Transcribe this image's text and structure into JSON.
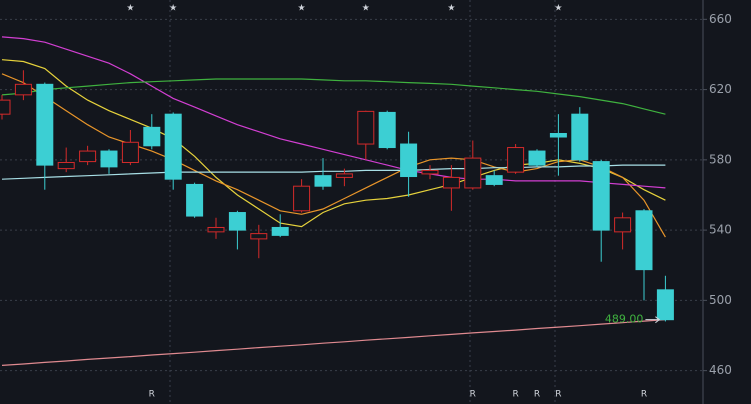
{
  "chart_data": {
    "type": "candlestick",
    "ylim": [
      441,
      671
    ],
    "yticks": [
      460,
      500,
      540,
      580,
      620,
      660
    ],
    "grid": true,
    "up_color": "#d42a2a",
    "down_color": "#3ccfd3",
    "categories": [
      null,
      null,
      null,
      null,
      null,
      null,
      null,
      null,
      null,
      null,
      null,
      null,
      null,
      null,
      null,
      null,
      null,
      null,
      null,
      null,
      null,
      null,
      null,
      null,
      null,
      null,
      null,
      null,
      null,
      null,
      null,
      null
    ],
    "candles": [
      {
        "open": 606,
        "high": 617,
        "low": 603,
        "close": 614
      },
      {
        "open": 617,
        "high": 631,
        "low": 614,
        "close": 623
      },
      {
        "open": 623,
        "high": 624,
        "low": 563,
        "close": 577
      },
      {
        "open": 575,
        "high": 587,
        "low": 573,
        "close": 578.5
      },
      {
        "open": 579,
        "high": 588,
        "low": 577,
        "close": 585
      },
      {
        "open": 585,
        "high": 586,
        "low": 572,
        "close": 576
      },
      {
        "open": 578.5,
        "high": 597,
        "low": 577,
        "close": 590
      },
      {
        "open": 598.5,
        "high": 606,
        "low": 586,
        "close": 588
      },
      {
        "open": 606,
        "high": 607,
        "low": 563,
        "close": 569
      },
      {
        "open": 566,
        "high": 567,
        "low": 547,
        "close": 548
      },
      {
        "open": 539,
        "high": 547,
        "low": 535,
        "close": 541.5
      },
      {
        "open": 550,
        "high": 551,
        "low": 529,
        "close": 540
      },
      {
        "open": 535,
        "high": 543,
        "low": 524,
        "close": 538
      },
      {
        "open": 541.5,
        "high": 549,
        "low": 536,
        "close": 537
      },
      {
        "open": 551,
        "high": 569,
        "low": 550,
        "close": 565
      },
      {
        "open": 571,
        "high": 581,
        "low": 563,
        "close": 565
      },
      {
        "open": 570,
        "high": 575,
        "low": 565,
        "close": 572
      },
      {
        "open": 589,
        "high": 608,
        "low": 580,
        "close": 607.6
      },
      {
        "open": 607,
        "high": 608,
        "low": 586,
        "close": 587
      },
      {
        "open": 589,
        "high": 596,
        "low": 559,
        "close": 570.5
      },
      {
        "open": 572,
        "high": 577,
        "low": 569,
        "close": 574
      },
      {
        "open": 564,
        "high": 577,
        "low": 551,
        "close": 570
      },
      {
        "open": 564,
        "high": 591,
        "low": 563,
        "close": 581
      },
      {
        "open": 571,
        "high": 574,
        "low": 565,
        "close": 566
      },
      {
        "open": 573,
        "high": 589,
        "low": 572,
        "close": 587
      },
      {
        "open": 585,
        "high": 586,
        "low": 576,
        "close": 577
      },
      {
        "open": 595,
        "high": 606,
        "low": 571,
        "close": 593
      },
      {
        "open": 606,
        "high": 610,
        "low": 579,
        "close": 580
      },
      {
        "open": 579,
        "high": 580,
        "low": 522,
        "close": 540
      },
      {
        "open": 539,
        "high": 550,
        "low": 529,
        "close": 547
      },
      {
        "open": 551,
        "high": 552,
        "low": 500,
        "close": 517.5
      },
      {
        "open": 506,
        "high": 514,
        "low": 488,
        "close": 489
      }
    ],
    "lines": [
      {
        "color": "#e6d23c",
        "values": [
          637,
          636,
          632,
          622,
          614,
          608,
          603,
          598,
          592,
          582,
          570,
          560,
          552,
          544,
          542,
          550,
          555,
          557,
          558,
          560,
          563,
          566,
          570,
          574,
          577,
          578,
          580,
          578,
          575,
          570,
          563,
          557
        ]
      },
      {
        "color": "#e8952a",
        "values": [
          629,
          624,
          616,
          608,
          600,
          593,
          589,
          585,
          580,
          574,
          568,
          563,
          557,
          551,
          549,
          552,
          558,
          564,
          570,
          576,
          580,
          581,
          580,
          576,
          573,
          575,
          579,
          580,
          576,
          570,
          557,
          536
        ]
      },
      {
        "color": "#d23fd2",
        "values": [
          650,
          649,
          647,
          643,
          639,
          635,
          629,
          622,
          615,
          610,
          605,
          600,
          596,
          592,
          589,
          586,
          583,
          580,
          577,
          574,
          572,
          570,
          569,
          569,
          568,
          568,
          568,
          568,
          567,
          566,
          565,
          564
        ]
      },
      {
        "color": "#3fb23f",
        "values": [
          617,
          618,
          620,
          621,
          622,
          623,
          624,
          624.5,
          625,
          625.5,
          626,
          626,
          626,
          626,
          626,
          625.5,
          625,
          625,
          624.5,
          624,
          623.5,
          623,
          622,
          621,
          620,
          619,
          617.5,
          616,
          614,
          612,
          609,
          606
        ]
      },
      {
        "color": "#a8dfe6",
        "values": [
          569,
          569.5,
          570,
          570.5,
          571,
          571.5,
          572,
          572.5,
          573,
          573,
          573,
          573,
          573,
          573,
          573,
          573.5,
          573.5,
          574,
          574,
          574,
          574.5,
          575,
          575,
          575.5,
          575.5,
          576,
          576,
          576.5,
          576.5,
          577,
          577,
          577
        ]
      },
      {
        "color": "#e08a90",
        "values": [
          463,
          463.8,
          464.7,
          465.5,
          466.4,
          467.2,
          468,
          468.9,
          469.7,
          470.5,
          471.4,
          472.2,
          473.1,
          473.9,
          474.7,
          475.6,
          476.4,
          477.3,
          478.1,
          478.9,
          479.8,
          480.6,
          481.5,
          482.3,
          483.1,
          484,
          484.8,
          485.6,
          486.5,
          487.3,
          488.2,
          489
        ]
      }
    ],
    "top_markers": [
      null,
      null,
      null,
      null,
      null,
      null,
      "★",
      null,
      "★",
      null,
      null,
      null,
      null,
      null,
      "★",
      null,
      null,
      "★",
      null,
      null,
      null,
      "★",
      null,
      null,
      null,
      null,
      "★",
      null,
      null,
      null,
      null,
      null
    ],
    "bottom_markers": [
      null,
      null,
      null,
      null,
      null,
      null,
      null,
      "R",
      null,
      null,
      null,
      null,
      null,
      null,
      null,
      null,
      null,
      null,
      null,
      null,
      null,
      null,
      "R",
      null,
      "R",
      "R",
      "R",
      null,
      null,
      null,
      "R",
      null
    ],
    "annotation": {
      "text": "489.00",
      "value": 489,
      "color": "#3fb23f"
    }
  }
}
